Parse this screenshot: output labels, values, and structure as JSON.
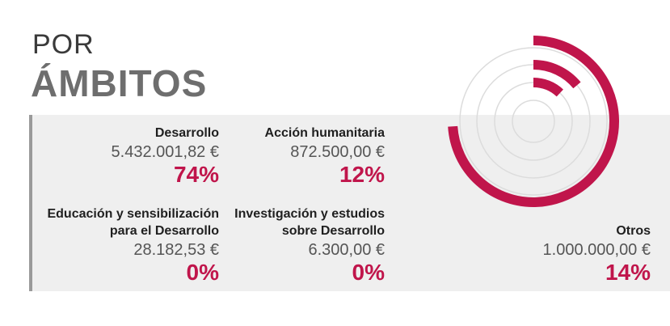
{
  "title": {
    "line1": "POR",
    "line2": "ÁMBITOS"
  },
  "colors": {
    "accent": "#c0154b",
    "ring_guide": "#dcdcdc",
    "panel_bg": "#efefef"
  },
  "items": [
    {
      "label_lines": [
        "Desarrollo"
      ],
      "amount": "5.432.001,82 €",
      "percent": "74%"
    },
    {
      "label_lines": [
        "Acción humanitaria"
      ],
      "amount": "872.500,00 €",
      "percent": "12%"
    },
    {
      "label_lines": [
        "Educación y sensibilización",
        "para el Desarrollo"
      ],
      "amount": "28.182,53 €",
      "percent": "0%"
    },
    {
      "label_lines": [
        "Investigación y estudios",
        "sobre Desarrollo"
      ],
      "amount": "6.300,00 €",
      "percent": "0%"
    },
    {
      "label_lines": [
        "Otros"
      ],
      "amount": "1.000.000,00 €",
      "percent": "14%"
    }
  ],
  "chart_data": {
    "type": "radial-bar",
    "categories": [
      "Desarrollo",
      "Acción humanitaria",
      "Educación y sensibilización para el Desarrollo",
      "Investigación y estudios sobre Desarrollo",
      "Otros"
    ],
    "values": [
      5432001.82,
      872500.0,
      28182.53,
      6300.0,
      1000000.0
    ],
    "percentages": [
      74,
      12,
      0,
      0,
      14
    ],
    "rings_drawn": [
      {
        "category": "Desarrollo",
        "percent": 74
      },
      {
        "category": "Otros",
        "percent": 14
      },
      {
        "category": "Acción humanitaria",
        "percent": 12
      }
    ],
    "guide_ring_count": 4,
    "start_angle": "top",
    "direction": "clockwise"
  }
}
